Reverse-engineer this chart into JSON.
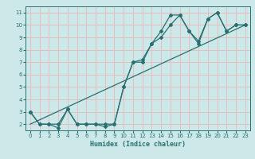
{
  "xlabel": "Humidex (Indice chaleur)",
  "xlim": [
    -0.5,
    23.5
  ],
  "ylim": [
    1.5,
    11.5
  ],
  "xticks": [
    0,
    1,
    2,
    3,
    4,
    5,
    6,
    7,
    8,
    9,
    10,
    11,
    12,
    13,
    14,
    15,
    16,
    17,
    18,
    19,
    20,
    21,
    22,
    23
  ],
  "yticks": [
    2,
    3,
    4,
    5,
    6,
    7,
    8,
    9,
    10,
    11
  ],
  "bg_color": "#cce8e8",
  "grid_color": "#e8b8b8",
  "line_color": "#2a7070",
  "line1_x": [
    0,
    1,
    2,
    3,
    4,
    5,
    6,
    7,
    8,
    9,
    10,
    11,
    12,
    13,
    14,
    15,
    16,
    17,
    18,
    19,
    20,
    21,
    22,
    23
  ],
  "line1_y": [
    3,
    2,
    2,
    2,
    3.2,
    2,
    2,
    2,
    2,
    2,
    5,
    7,
    7.2,
    8.5,
    9,
    10,
    10.8,
    9.5,
    8.7,
    10.5,
    11,
    9.5,
    10,
    10
  ],
  "line2_x": [
    0,
    1,
    2,
    3,
    4,
    5,
    6,
    7,
    8,
    9,
    10,
    11,
    12,
    13,
    14,
    15,
    16,
    17,
    18,
    19,
    20,
    21,
    22,
    23
  ],
  "line2_y": [
    3,
    2,
    2,
    1.7,
    3.2,
    2,
    2,
    2,
    1.8,
    2,
    5,
    7,
    7,
    8.5,
    9.5,
    10.8,
    10.8,
    9.5,
    8.5,
    10.5,
    11,
    9.5,
    10,
    10
  ],
  "line3_x": [
    0,
    23
  ],
  "line3_y": [
    2,
    10
  ]
}
